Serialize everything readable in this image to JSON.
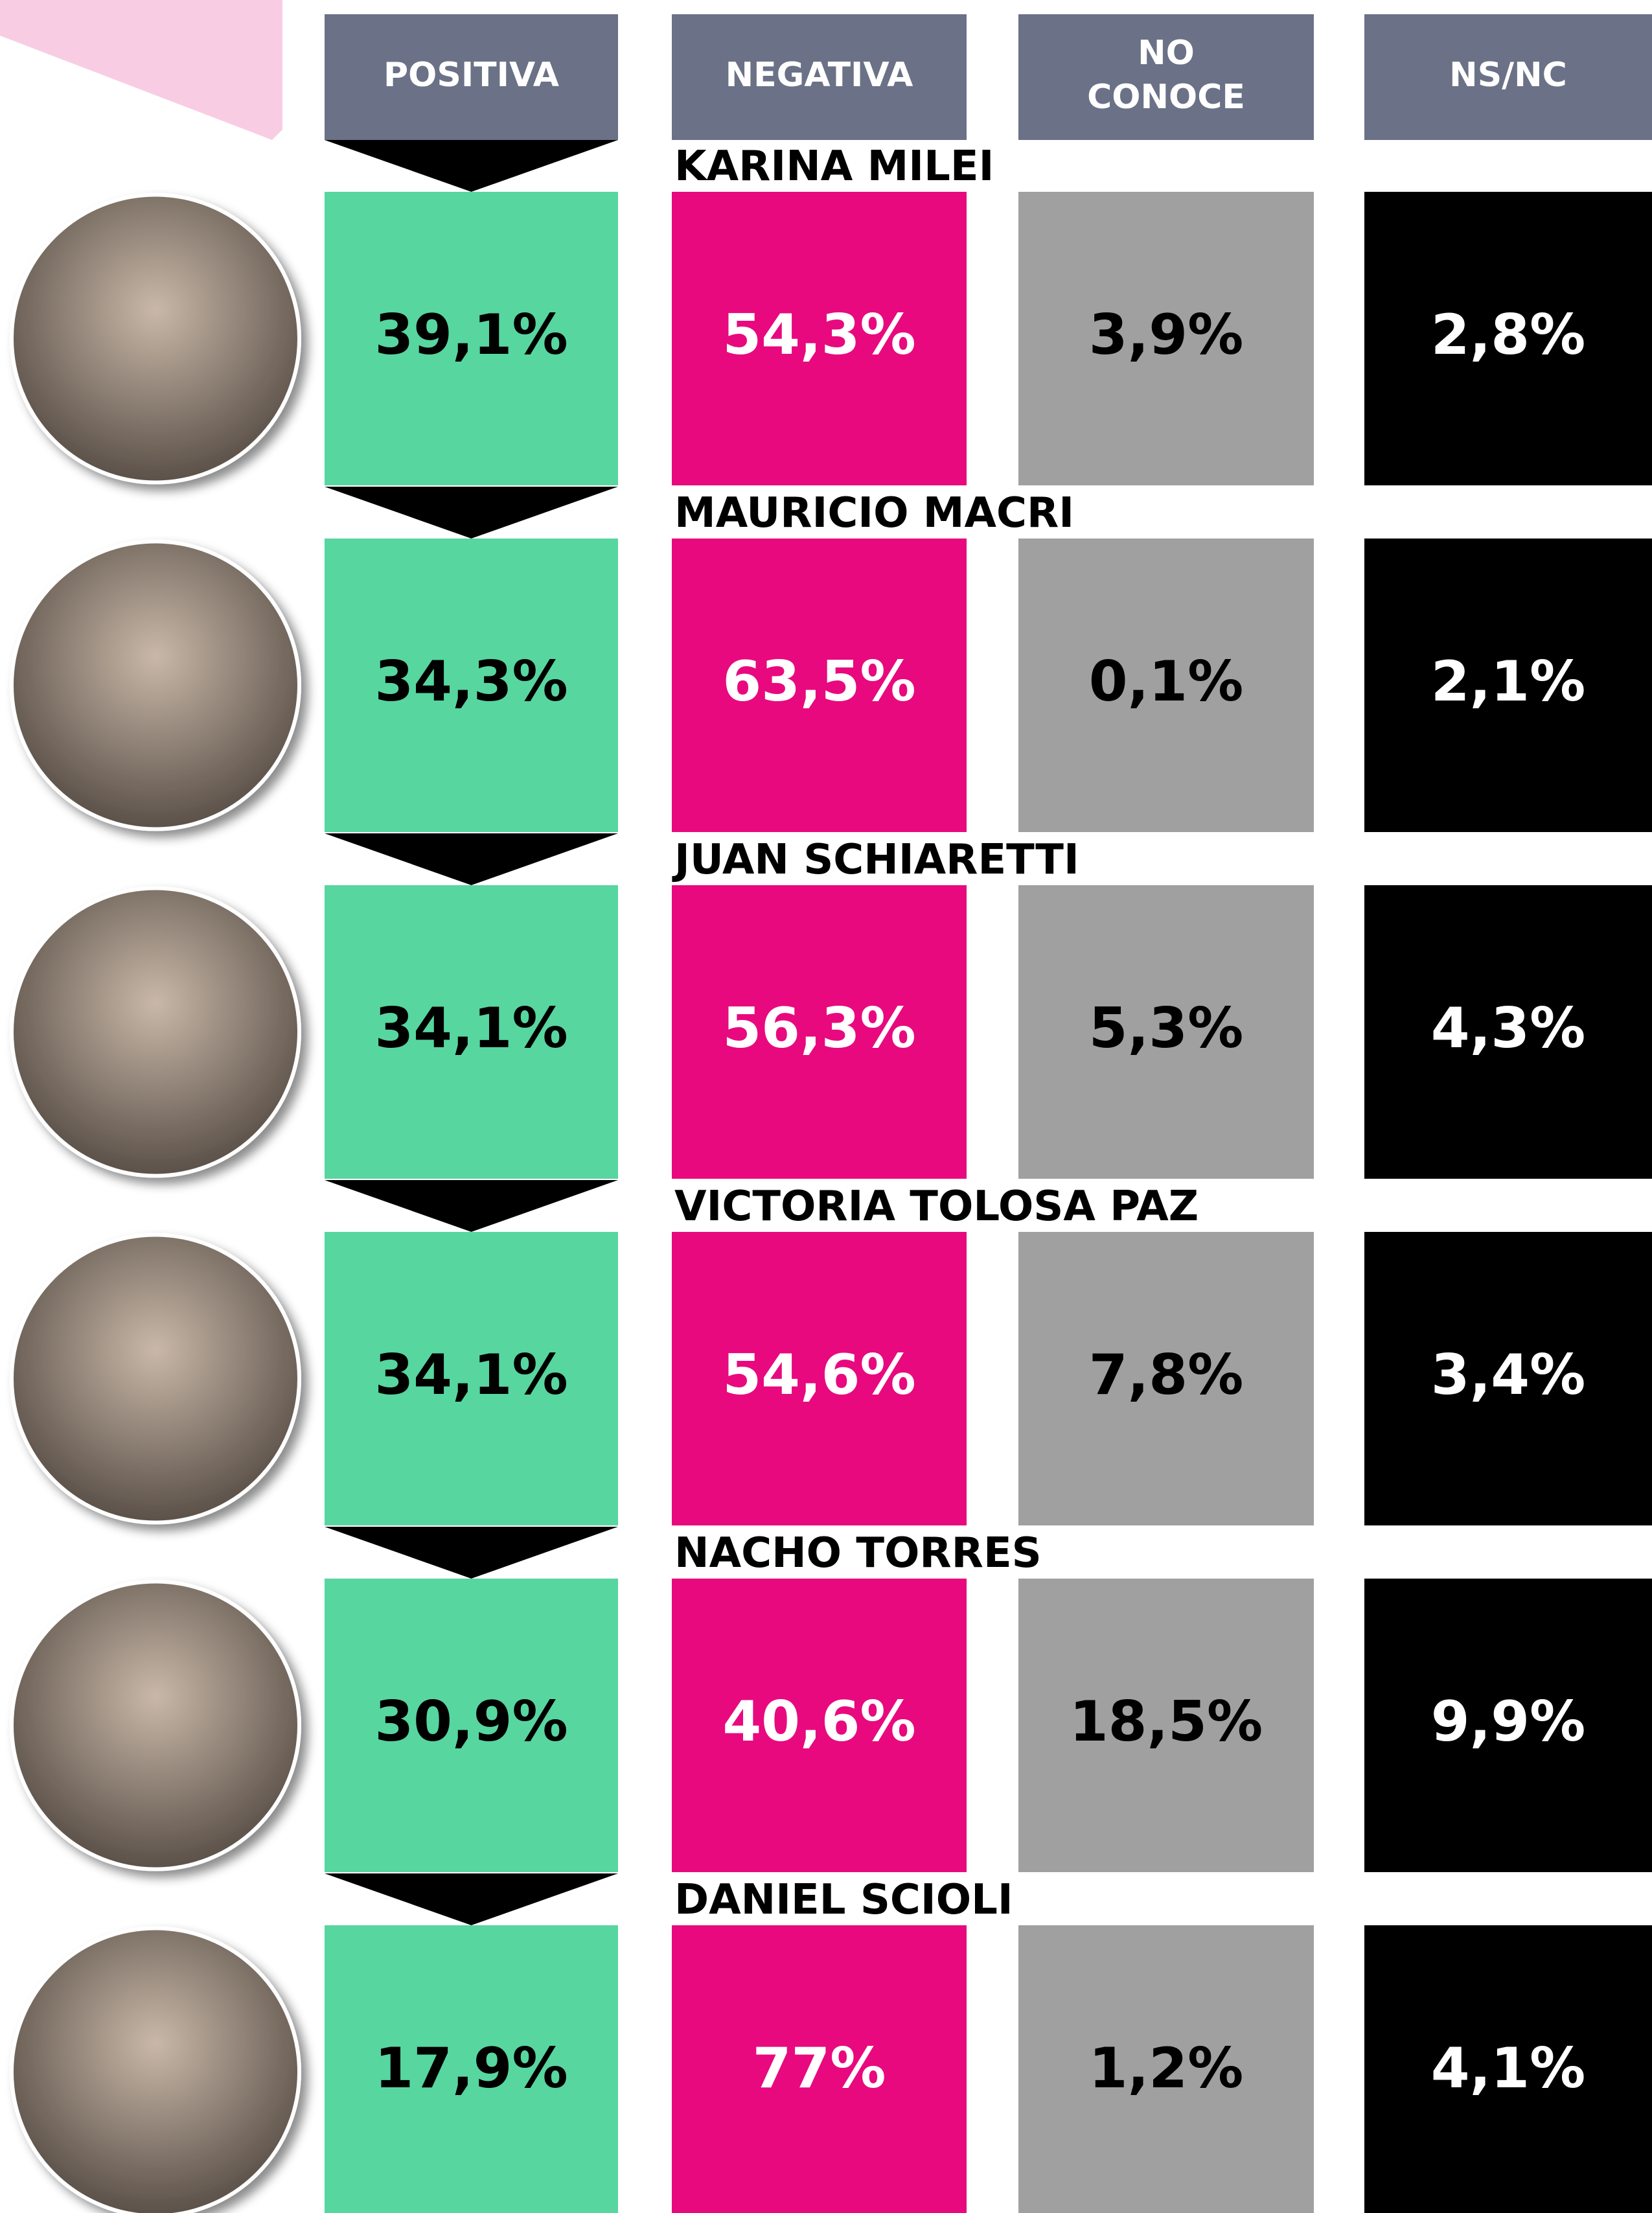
{
  "table": {
    "headers": [
      [
        "POSITIVA"
      ],
      [
        "NEGATIVA"
      ],
      [
        "NO",
        "CONOCE"
      ],
      [
        "NS/NC"
      ]
    ],
    "rows": [
      {
        "name": "KARINA MILEI",
        "values": [
          "39,1%",
          "54,3%",
          "3,9%",
          "2,8%"
        ]
      },
      {
        "name": "MAURICIO MACRI",
        "values": [
          "34,3%",
          "63,5%",
          "0,1%",
          "2,1%"
        ]
      },
      {
        "name": "JUAN SCHIARETTI",
        "values": [
          "34,1%",
          "56,3%",
          "5,3%",
          "4,3%"
        ]
      },
      {
        "name": "VICTORIA TOLOSA PAZ",
        "values": [
          "34,1%",
          "54,6%",
          "7,8%",
          "3,4%"
        ]
      },
      {
        "name": "NACHO TORRES",
        "values": [
          "30,9%",
          "40,6%",
          "18,5%",
          "9,9%"
        ]
      },
      {
        "name": "DANIEL SCIOLI",
        "values": [
          "17,9%",
          "77%",
          "1,2%",
          "4,1%"
        ]
      }
    ]
  }
}
